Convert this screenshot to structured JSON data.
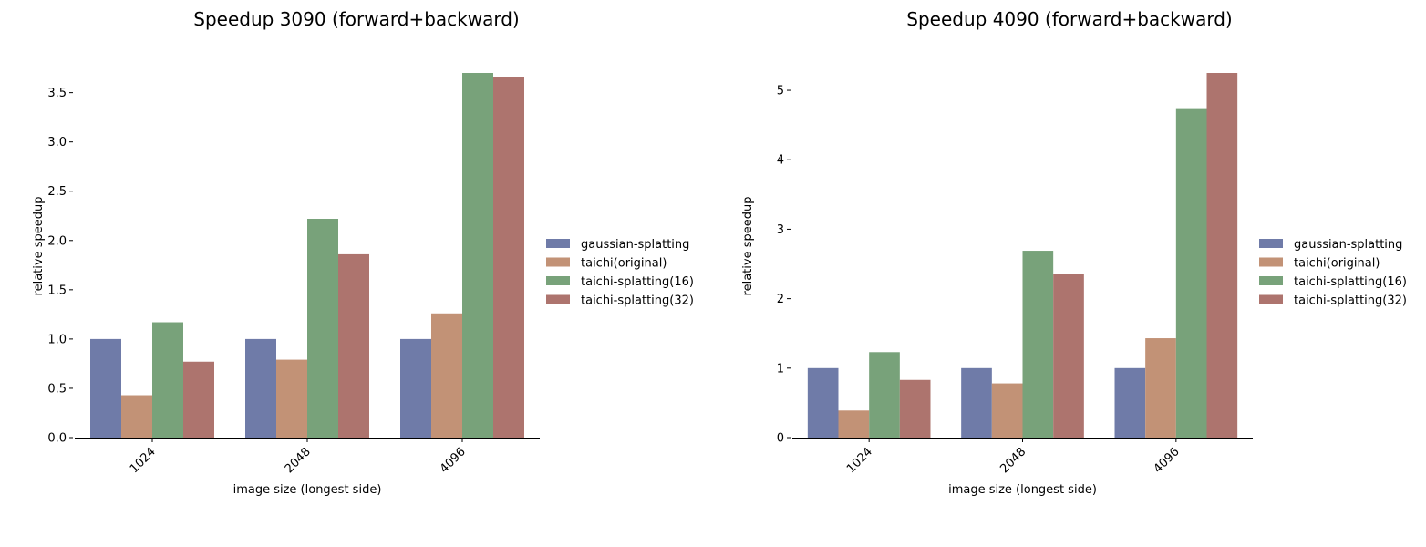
{
  "chart_data": [
    {
      "type": "bar",
      "title": "Speedup 3090 (forward+backward)",
      "xlabel": "image size (longest side)",
      "ylabel": "relative speedup",
      "categories": [
        "1024",
        "2048",
        "4096"
      ],
      "ylim": [
        0,
        3.7
      ],
      "yticks": [
        0.0,
        0.5,
        1.0,
        1.5,
        2.0,
        2.5,
        3.0,
        3.5
      ],
      "ytick_labels": [
        "0.0",
        "0.5",
        "1.0",
        "1.5",
        "2.0",
        "2.5",
        "3.0",
        "3.5"
      ],
      "grid": false,
      "legend_position": "right",
      "series": [
        {
          "name": "gaussian-splatting",
          "color": "#6f7ba8",
          "values": [
            1.0,
            1.0,
            1.0
          ]
        },
        {
          "name": "taichi(original)",
          "color": "#c29276",
          "values": [
            0.43,
            0.79,
            1.26
          ]
        },
        {
          "name": "taichi-splatting(16)",
          "color": "#78a27a",
          "values": [
            1.17,
            2.22,
            3.7
          ]
        },
        {
          "name": "taichi-splatting(32)",
          "color": "#ad746e",
          "values": [
            0.77,
            1.86,
            3.66
          ]
        }
      ]
    },
    {
      "type": "bar",
      "title": "Speedup 4090 (forward+backward)",
      "xlabel": "image size (longest side)",
      "ylabel": "relative speedup",
      "categories": [
        "1024",
        "2048",
        "4096"
      ],
      "ylim": [
        0,
        5.25
      ],
      "yticks": [
        0,
        1,
        2,
        3,
        4,
        5
      ],
      "ytick_labels": [
        "0",
        "1",
        "2",
        "3",
        "4",
        "5"
      ],
      "grid": false,
      "legend_position": "right",
      "series": [
        {
          "name": "gaussian-splatting",
          "color": "#6f7ba8",
          "values": [
            1.0,
            1.0,
            1.0
          ]
        },
        {
          "name": "taichi(original)",
          "color": "#c29276",
          "values": [
            0.39,
            0.78,
            1.43
          ]
        },
        {
          "name": "taichi-splatting(16)",
          "color": "#78a27a",
          "values": [
            1.23,
            2.69,
            4.73
          ]
        },
        {
          "name": "taichi-splatting(32)",
          "color": "#ad746e",
          "values": [
            0.83,
            2.36,
            5.25
          ]
        }
      ]
    }
  ]
}
